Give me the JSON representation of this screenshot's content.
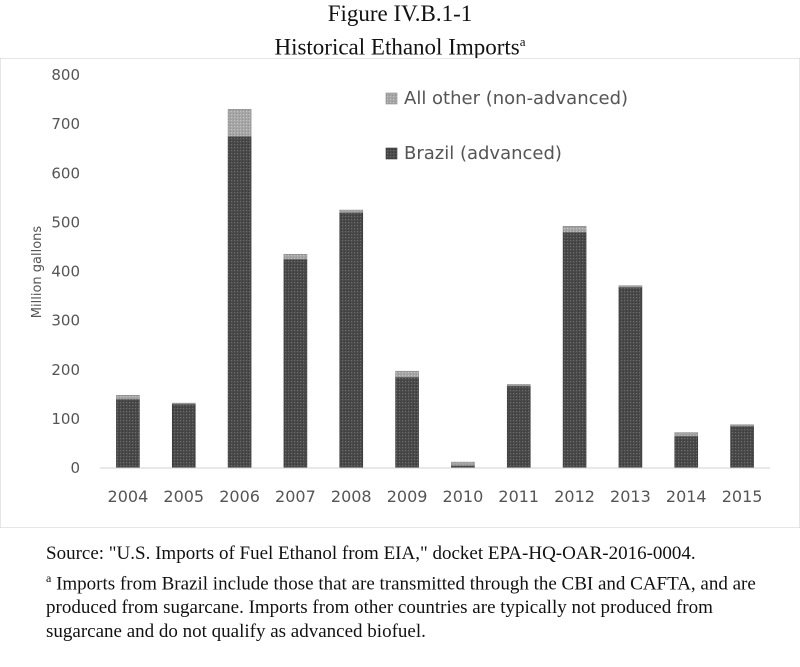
{
  "title": {
    "line1": "Figure IV.B.1-1",
    "line2": "Historical Ethanol Imports",
    "line2_sup": "a"
  },
  "source": {
    "text": "Source: \"U.S. Imports of Fuel Ethanol from EIA,\" docket EPA-HQ-OAR-2016-0004.",
    "note_mark": "a",
    "note_text": " Imports from Brazil include those that are transmitted through the CBI and CAFTA, and are produced from sugarcane.  Imports from other countries are typically not produced from sugarcane and do not qualify as advanced biofuel."
  },
  "colors": {
    "brazil": "#4a4a4a",
    "other": "#a6a6a6",
    "axis_text": "#555555",
    "gridline": "#e6e6e6"
  },
  "chart_data": {
    "type": "bar",
    "stacked": true,
    "categories": [
      "2004",
      "2005",
      "2006",
      "2007",
      "2008",
      "2009",
      "2010",
      "2011",
      "2012",
      "2013",
      "2014",
      "2015"
    ],
    "series": [
      {
        "name": "Brazil (advanced)",
        "values": [
          140,
          130,
          675,
          425,
          520,
          185,
          5,
          167,
          480,
          368,
          65,
          85
        ]
      },
      {
        "name": "All other (non-advanced)",
        "values": [
          8,
          2,
          55,
          10,
          5,
          12,
          7,
          3,
          12,
          3,
          7,
          3
        ]
      }
    ],
    "title": "",
    "xlabel": "",
    "ylabel": "Million gallons",
    "ylim": [
      0,
      800
    ],
    "yticks": [
      0,
      100,
      200,
      300,
      400,
      500,
      600,
      700,
      800
    ],
    "legend_position": "top-right",
    "legend_order": [
      "All other (non-advanced)",
      "Brazil (advanced)"
    ],
    "grid": false
  }
}
